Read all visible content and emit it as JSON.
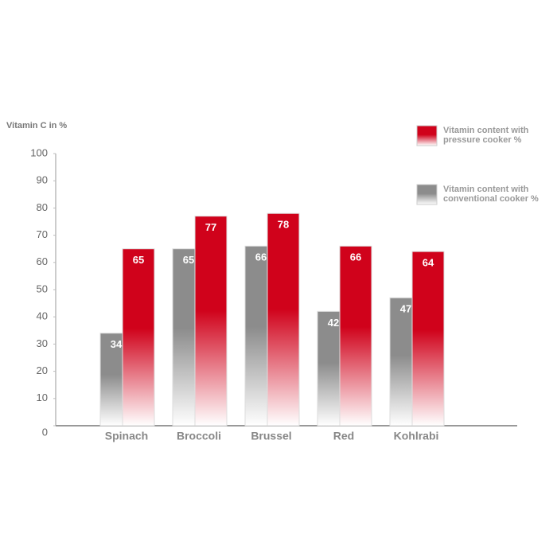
{
  "chart_data": {
    "type": "bar",
    "y_axis_label": "Vitamin C in %",
    "categories": [
      "Spinach",
      "Broccoli",
      "Brussel",
      "Red",
      "Kohlrabi"
    ],
    "series": [
      {
        "name": "Vitamin content with conventional cooker %",
        "color": "#8c8c8c",
        "values": [
          34,
          65,
          66,
          42,
          47
        ]
      },
      {
        "name": "Vitamin content with pressure cooker %",
        "color": "#d0021b",
        "values": [
          65,
          77,
          78,
          66,
          64
        ]
      }
    ],
    "legend_order": [
      1,
      0
    ],
    "ylim": [
      0,
      100
    ],
    "yticks": [
      0,
      10,
      20,
      30,
      40,
      50,
      60,
      70,
      80,
      90,
      100
    ],
    "grid": false
  }
}
